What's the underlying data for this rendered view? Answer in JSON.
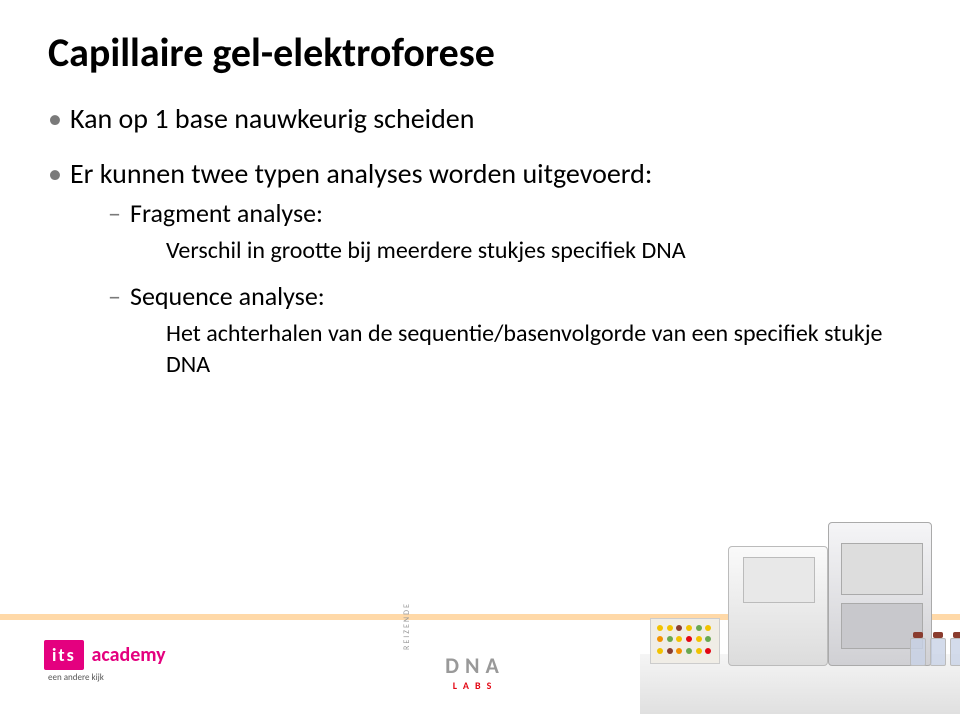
{
  "title": "Capillaire gel-elektroforese",
  "bullets": {
    "item1": "Kan op 1 base nauwkeurig scheiden",
    "item2": "Er kunnen twee typen analyses worden uitgevoerd:",
    "sub1_label": "Fragment analyse:",
    "sub1_detail": "Verschil in grootte bij meerdere stukjes specifiek DNA",
    "sub2_label": "Sequence analyse:",
    "sub2_detail": "Het achterhalen van de sequentie/basenvolgorde van een specifiek stukje DNA"
  },
  "logos": {
    "its_box": "its",
    "its_text": "academy",
    "its_tag": "een andere kijk",
    "dna_top": "DNA",
    "dna_bottom": "LABS",
    "dna_side": "REIZENDE"
  },
  "colors": {
    "accent_stripe": "#ffd9a8",
    "its_pink": "#e4007f",
    "labs_red": "#e30613",
    "bullet_marker": "#7a7a7a",
    "rack_dots": [
      "#f2c200",
      "#f2c200",
      "#8a3c2e",
      "#f2c200",
      "#6aa84f",
      "#f2c200",
      "#f29200",
      "#6aa84f",
      "#f2c200",
      "#e30613",
      "#f2c200",
      "#6aa84f",
      "#f2c200",
      "#8a3c2e",
      "#f29200",
      "#6aa84f",
      "#f2c200",
      "#e30613"
    ]
  }
}
